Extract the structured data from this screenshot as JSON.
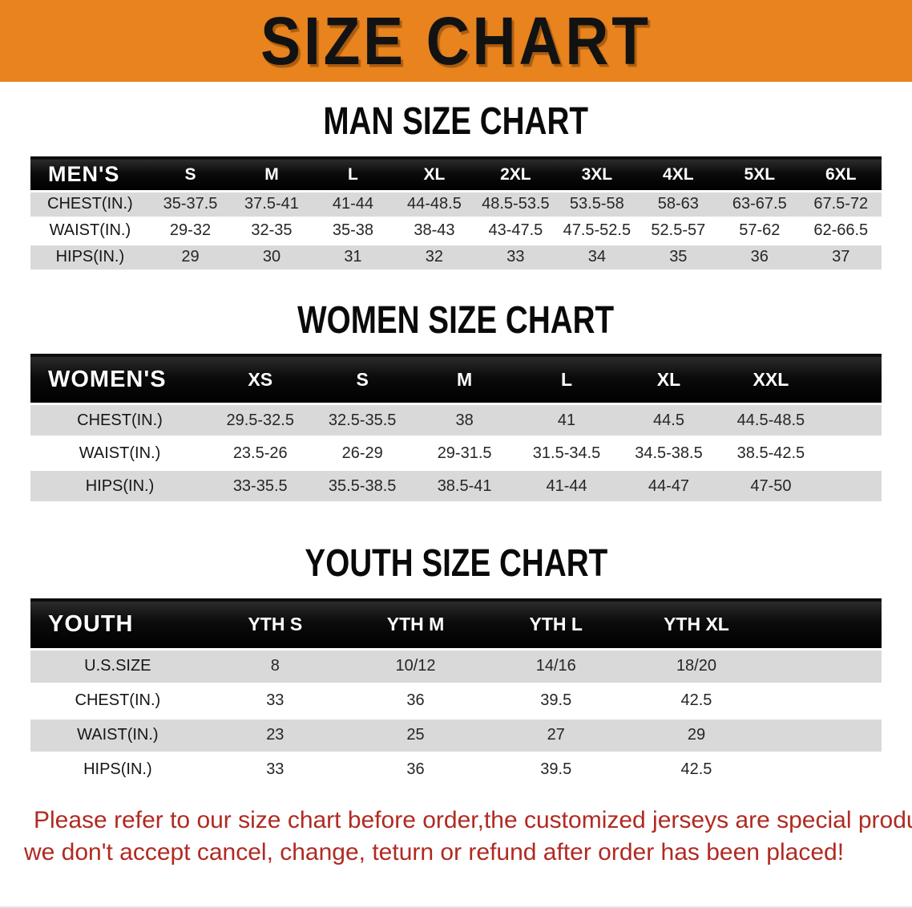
{
  "banner": {
    "title": "SIZE CHART"
  },
  "colors": {
    "banner_orange": "#E8831E",
    "header_black": "#0b0b0b",
    "row_gray": "#D9D9D9",
    "disclaimer_red": "#B02A22"
  },
  "sections": [
    {
      "heading": "MAN SIZE CHART",
      "table": {
        "corner_label": "MEN'S",
        "columns": [
          "S",
          "M",
          "L",
          "XL",
          "2XL",
          "3XL",
          "4XL",
          "5XL",
          "6XL"
        ],
        "rows": [
          {
            "label": "CHEST(IN.)",
            "values": [
              "35-37.5",
              "37.5-41",
              "41-44",
              "44-48.5",
              "48.5-53.5",
              "53.5-58",
              "58-63",
              "63-67.5",
              "67.5-72"
            ]
          },
          {
            "label": "WAIST(IN.)",
            "values": [
              "29-32",
              "32-35",
              "35-38",
              "38-43",
              "43-47.5",
              "47.5-52.5",
              "52.5-57",
              "57-62",
              "62-66.5"
            ]
          },
          {
            "label": "HIPS(IN.)",
            "values": [
              "29",
              "30",
              "31",
              "32",
              "33",
              "34",
              "35",
              "36",
              "37"
            ]
          }
        ]
      }
    },
    {
      "heading": "WOMEN SIZE CHART",
      "table": {
        "corner_label": "WOMEN'S",
        "columns": [
          "XS",
          "S",
          "M",
          "L",
          "XL",
          "XXL"
        ],
        "rows": [
          {
            "label": "CHEST(IN.)",
            "values": [
              "29.5-32.5",
              "32.5-35.5",
              "38",
              "41",
              "44.5",
              "44.5-48.5"
            ]
          },
          {
            "label": "WAIST(IN.)",
            "values": [
              "23.5-26",
              "26-29",
              "29-31.5",
              "31.5-34.5",
              "34.5-38.5",
              "38.5-42.5"
            ]
          },
          {
            "label": "HIPS(IN.)",
            "values": [
              "33-35.5",
              "35.5-38.5",
              "38.5-41",
              "41-44",
              "44-47",
              "47-50"
            ]
          }
        ]
      }
    },
    {
      "heading": "YOUTH SIZE CHART",
      "table": {
        "corner_label": "YOUTH",
        "columns": [
          "YTH S",
          "YTH M",
          "YTH L",
          "YTH XL"
        ],
        "rows": [
          {
            "label": "U.S.SIZE",
            "values": [
              "8",
              "10/12",
              "14/16",
              "18/20"
            ]
          },
          {
            "label": "CHEST(IN.)",
            "values": [
              "33",
              "36",
              "39.5",
              "42.5"
            ]
          },
          {
            "label": "WAIST(IN.)",
            "values": [
              "23",
              "25",
              "27",
              "29"
            ]
          },
          {
            "label": "HIPS(IN.)",
            "values": [
              "33",
              "36",
              "39.5",
              "42.5"
            ]
          }
        ]
      }
    }
  ],
  "disclaimer": {
    "line1": "Please refer to our size chart before order,the customized jerseys are special products,",
    "line2": "we don't accept cancel, change, teturn or refund after order has been placed!"
  }
}
